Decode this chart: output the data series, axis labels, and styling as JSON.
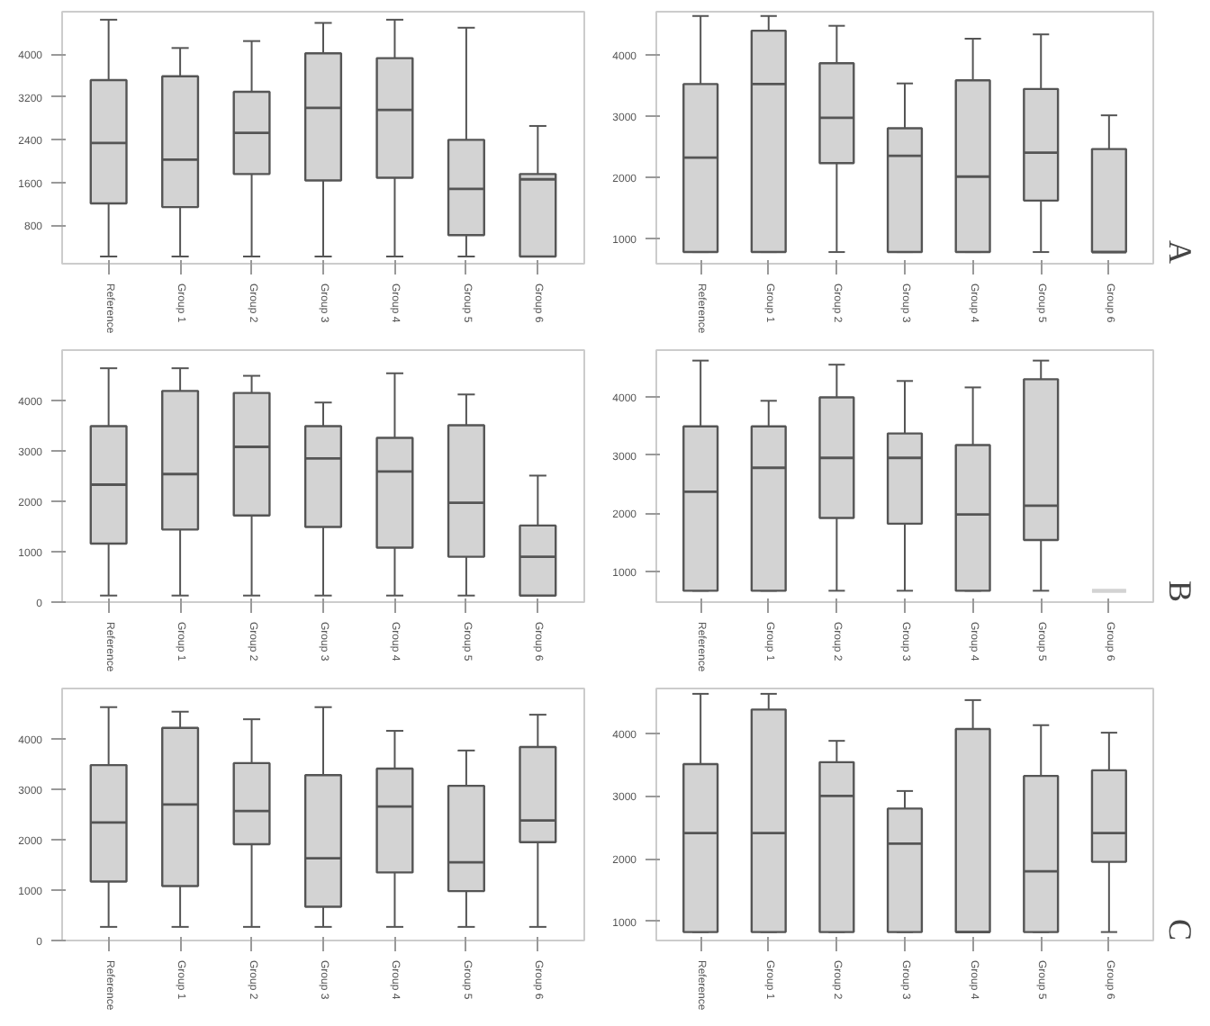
{
  "chart_data": [
    {
      "type": "box",
      "categories": [
        "Reference",
        "Group 1",
        "Group 2",
        "Group 3",
        "Group 4",
        "Group 5",
        "Group 6"
      ],
      "color": "#d3d3d3",
      "ylim": [
        80,
        4800
      ],
      "yticks": [
        800,
        1600,
        2400,
        3200,
        4000
      ],
      "grid": false,
      "boxes": [
        {
          "low": 215,
          "q1": 1210,
          "median": 2340,
          "q3": 3520,
          "high": 4650
        },
        {
          "low": 215,
          "q1": 1140,
          "median": 2030,
          "q3": 3590,
          "high": 4120
        },
        {
          "low": 215,
          "q1": 1760,
          "median": 2530,
          "q3": 3300,
          "high": 4250
        },
        {
          "low": 215,
          "q1": 1640,
          "median": 3000,
          "q3": 4020,
          "high": 4590
        },
        {
          "low": 215,
          "q1": 1690,
          "median": 2960,
          "q3": 3930,
          "high": 4650
        },
        {
          "low": 215,
          "q1": 615,
          "median": 1480,
          "q3": 2400,
          "high": 4500
        },
        {
          "low": 215,
          "q1": 215,
          "median": 1660,
          "q3": 1760,
          "high": 2660
        }
      ]
    },
    {
      "type": "box",
      "categories": [
        "Reference",
        "Group 1",
        "Group 2",
        "Group 3",
        "Group 4",
        "Group 5",
        "Group 6"
      ],
      "color": "#d3d3d3",
      "ylim": [
        590,
        4700
      ],
      "yticks": [
        1000,
        2000,
        3000,
        4000
      ],
      "grid": false,
      "annotations": [
        "A"
      ],
      "boxes": [
        {
          "low": 780,
          "q1": 780,
          "median": 2320,
          "q3": 3520,
          "high": 4630
        },
        {
          "low": 780,
          "q1": 780,
          "median": 3520,
          "q3": 4390,
          "high": 4630
        },
        {
          "low": 780,
          "q1": 2230,
          "median": 2970,
          "q3": 3860,
          "high": 4470
        },
        {
          "low": 780,
          "q1": 780,
          "median": 2350,
          "q3": 2800,
          "high": 3530
        },
        {
          "low": 780,
          "q1": 780,
          "median": 2010,
          "q3": 3580,
          "high": 4260
        },
        {
          "low": 780,
          "q1": 1620,
          "median": 2400,
          "q3": 3440,
          "high": 4330
        },
        {
          "low": 780,
          "q1": 780,
          "median": 780,
          "q3": 2460,
          "high": 3010
        }
      ]
    },
    {
      "type": "box",
      "categories": [
        "Reference",
        "Group 1",
        "Group 2",
        "Group 3",
        "Group 4",
        "Group 5",
        "Group 6"
      ],
      "color": "#d3d3d3",
      "ylim": [
        0,
        5000
      ],
      "yticks": [
        0,
        1000,
        2000,
        3000,
        4000
      ],
      "grid": false,
      "boxes": [
        {
          "low": 130,
          "q1": 1160,
          "median": 2330,
          "q3": 3490,
          "high": 4640
        },
        {
          "low": 130,
          "q1": 1440,
          "median": 2540,
          "q3": 4190,
          "high": 4640
        },
        {
          "low": 130,
          "q1": 1720,
          "median": 3080,
          "q3": 4150,
          "high": 4490
        },
        {
          "low": 130,
          "q1": 1490,
          "median": 2850,
          "q3": 3490,
          "high": 3960
        },
        {
          "low": 130,
          "q1": 1080,
          "median": 2590,
          "q3": 3260,
          "high": 4540
        },
        {
          "low": 130,
          "q1": 900,
          "median": 1970,
          "q3": 3510,
          "high": 4120
        },
        {
          "low": 130,
          "q1": 130,
          "median": 900,
          "q3": 1520,
          "high": 2510
        }
      ]
    },
    {
      "type": "box",
      "categories": [
        "Reference",
        "Group 1",
        "Group 2",
        "Group 3",
        "Group 4",
        "Group 5",
        "Group 6"
      ],
      "color": "#d3d3d3",
      "ylim": [
        475,
        4800
      ],
      "yticks": [
        1000,
        2000,
        3000,
        4000
      ],
      "grid": false,
      "annotations": [
        "B"
      ],
      "boxes": [
        {
          "low": 670,
          "q1": 670,
          "median": 2370,
          "q3": 3490,
          "high": 4620
        },
        {
          "low": 670,
          "q1": 670,
          "median": 2780,
          "q3": 3490,
          "high": 3930
        },
        {
          "low": 670,
          "q1": 1920,
          "median": 2950,
          "q3": 3990,
          "high": 4550
        },
        {
          "low": 670,
          "q1": 1820,
          "median": 2950,
          "q3": 3370,
          "high": 4270
        },
        {
          "low": 670,
          "q1": 670,
          "median": 1980,
          "q3": 3170,
          "high": 4160
        },
        {
          "low": 670,
          "q1": 1540,
          "median": 2130,
          "q3": 4300,
          "high": 4620
        },
        {
          "low": 670,
          "q1": 670,
          "median": 670,
          "q3": 670,
          "high": 670
        }
      ]
    },
    {
      "type": "box",
      "categories": [
        "Reference",
        "Group 1",
        "Group 2",
        "Group 3",
        "Group 4",
        "Group 5",
        "Group 6"
      ],
      "color": "#d3d3d3",
      "ylim": [
        0,
        5000
      ],
      "yticks": [
        0,
        1000,
        2000,
        3000,
        4000
      ],
      "grid": false,
      "boxes": [
        {
          "low": 270,
          "q1": 1170,
          "median": 2340,
          "q3": 3480,
          "high": 4630
        },
        {
          "low": 270,
          "q1": 1080,
          "median": 2700,
          "q3": 4220,
          "high": 4540
        },
        {
          "low": 270,
          "q1": 1910,
          "median": 2570,
          "q3": 3520,
          "high": 4390
        },
        {
          "low": 270,
          "q1": 670,
          "median": 1630,
          "q3": 3280,
          "high": 4630
        },
        {
          "low": 270,
          "q1": 1350,
          "median": 2660,
          "q3": 3410,
          "high": 4160
        },
        {
          "low": 270,
          "q1": 980,
          "median": 1550,
          "q3": 3070,
          "high": 3770
        },
        {
          "low": 270,
          "q1": 1950,
          "median": 2380,
          "q3": 3840,
          "high": 4480
        }
      ]
    },
    {
      "type": "box",
      "categories": [
        "Reference",
        "Group 1",
        "Group 2",
        "Group 3",
        "Group 4",
        "Group 5",
        "Group 6"
      ],
      "color": "#d3d3d3",
      "ylim": [
        695,
        4715
      ],
      "yticks": [
        1000,
        2000,
        3000,
        4000
      ],
      "grid": false,
      "annotations": [
        "C"
      ],
      "boxes": [
        {
          "low": 830,
          "q1": 830,
          "median": 2410,
          "q3": 3510,
          "high": 4630
        },
        {
          "low": 830,
          "q1": 830,
          "median": 2410,
          "q3": 4380,
          "high": 4630
        },
        {
          "low": 830,
          "q1": 830,
          "median": 3000,
          "q3": 3540,
          "high": 3880
        },
        {
          "low": 830,
          "q1": 830,
          "median": 2240,
          "q3": 2800,
          "high": 3080
        },
        {
          "low": 830,
          "q1": 830,
          "median": 830,
          "q3": 4070,
          "high": 4530
        },
        {
          "low": 830,
          "q1": 830,
          "median": 1800,
          "q3": 3320,
          "high": 4130
        },
        {
          "low": 830,
          "q1": 1950,
          "median": 2410,
          "q3": 3410,
          "high": 4010
        }
      ]
    }
  ]
}
